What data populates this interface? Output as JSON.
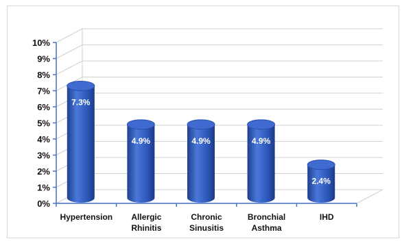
{
  "chart_data": {
    "type": "bar",
    "style": "3d-cylinder",
    "categories": [
      [
        "Hypertension"
      ],
      [
        "Allergic",
        "Rhinitis"
      ],
      [
        "Chronic",
        "Sinusitis"
      ],
      [
        "Bronchial",
        "Asthma"
      ],
      [
        "IHD"
      ]
    ],
    "values": [
      7.3,
      4.9,
      4.9,
      4.9,
      2.4
    ],
    "data_labels": [
      "7.3%",
      "4.9%",
      "4.9%",
      "4.9%",
      "2.4%"
    ],
    "ylim": [
      0,
      10
    ],
    "yticks": [
      "0%",
      "1%",
      "2%",
      "3%",
      "4%",
      "5%",
      "6%",
      "7%",
      "8%",
      "9%",
      "10%"
    ],
    "grid": true,
    "legend": "none",
    "colors": {
      "bar_dark": "#1f3f8f",
      "bar_mid": "#4a78d9",
      "bar_light": "#2c55b8",
      "bar_top": "#3f6ad0",
      "axis": "#4472c4",
      "grid": "#d0d0d0"
    }
  }
}
